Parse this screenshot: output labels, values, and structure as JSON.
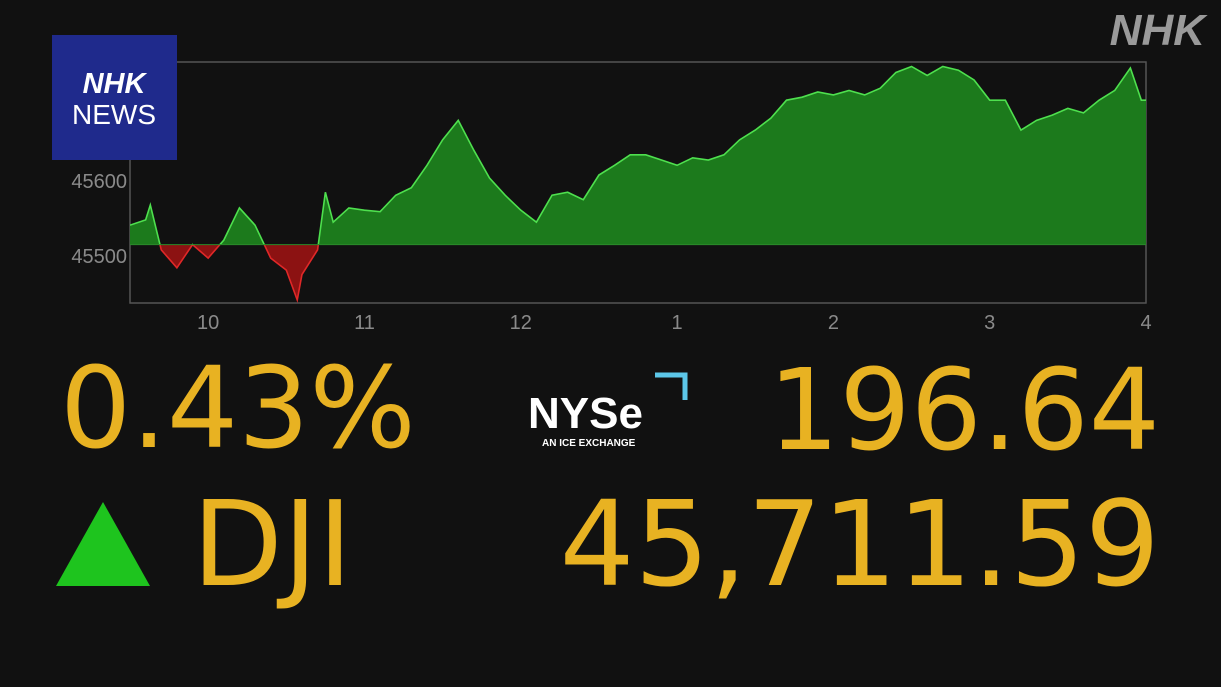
{
  "logo": "NHK",
  "badge": {
    "line1": "NHK",
    "line2": "NEWS"
  },
  "quote": {
    "change_percent": "0.43%",
    "exchange": "NYSe",
    "exchange_tagline": "AN ICE EXCHANGE",
    "change": "196.64",
    "symbol": "DJI",
    "price": "45,711.59"
  },
  "chart_data": {
    "type": "area",
    "x": [
      9.5,
      9.6,
      9.63,
      9.7,
      9.8,
      9.9,
      10.0,
      10.1,
      10.2,
      10.3,
      10.4,
      10.5,
      10.57,
      10.6,
      10.7,
      10.75,
      10.8,
      10.9,
      11.0,
      11.1,
      11.2,
      11.3,
      11.4,
      11.5,
      11.6,
      11.7,
      11.8,
      11.9,
      12.0,
      12.1,
      12.2,
      12.3,
      12.4,
      12.5,
      12.6,
      12.7,
      12.8,
      12.9,
      13.0,
      13.1,
      13.2,
      13.3,
      13.4,
      13.5,
      13.6,
      13.7,
      13.8,
      13.9,
      14.0,
      14.1,
      14.2,
      14.3,
      14.4,
      14.5,
      14.6,
      14.7,
      14.8,
      14.9,
      15.0,
      15.1,
      15.2,
      15.3,
      15.4,
      15.5,
      15.6,
      15.7,
      15.8,
      15.9,
      15.97,
      16.0
    ],
    "values": [
      45541,
      45548,
      45568,
      45508,
      45484,
      45515,
      45497,
      45521,
      45564,
      45541,
      45497,
      45481,
      45441,
      45475,
      45508,
      45585,
      45545,
      45564,
      45561,
      45559,
      45581,
      45591,
      45621,
      45655,
      45681,
      45641,
      45604,
      45581,
      45561,
      45545,
      45581,
      45585,
      45575,
      45608,
      45621,
      45635,
      45635,
      45628,
      45621,
      45631,
      45628,
      45635,
      45655,
      45668,
      45684,
      45708,
      45712,
      45719,
      45715,
      45721,
      45715,
      45724,
      45745,
      45753,
      45741,
      45753,
      45748,
      45735,
      45708,
      45708,
      45668,
      45681,
      45688,
      45697,
      45691,
      45708,
      45721,
      45751,
      45708,
      45708
    ],
    "baseline": 45515,
    "up_color": "#4ee04e",
    "up_fill": "#1c7a1c",
    "down_color": "#e02828",
    "down_fill": "#8c1212",
    "xlim": [
      9.5,
      16
    ],
    "ylim": [
      45437,
      45759
    ],
    "xticks": [
      {
        "value": 10,
        "label": "10"
      },
      {
        "value": 11,
        "label": "11"
      },
      {
        "value": 12,
        "label": "12"
      },
      {
        "value": 13,
        "label": "1"
      },
      {
        "value": 14,
        "label": "2"
      },
      {
        "value": 15,
        "label": "3"
      },
      {
        "value": 16,
        "label": "4"
      }
    ],
    "yticks": [
      45500,
      45600
    ]
  }
}
